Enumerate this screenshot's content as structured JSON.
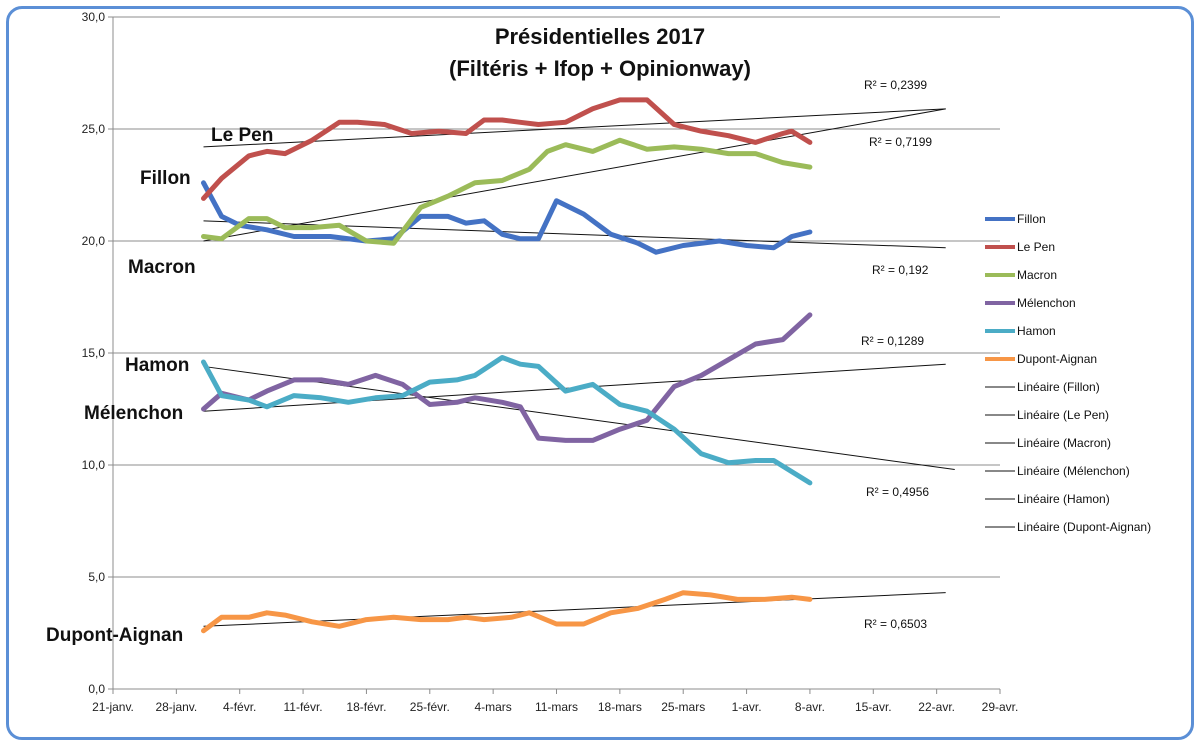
{
  "chart_data": {
    "type": "line",
    "title": "Présidentielles 2017",
    "subtitle": "(Filtéris + Ifop + Opinionway)",
    "ylim": [
      0,
      30
    ],
    "yticks": [
      "0,0",
      "5,0",
      "10,0",
      "15,0",
      "20,0",
      "25,0",
      "30,0"
    ],
    "xlim": [
      "2017-01-21",
      "2017-04-29"
    ],
    "xticks": [
      "21-janv.",
      "28-janv.",
      "4-févr.",
      "11-févr.",
      "18-févr.",
      "25-févr.",
      "4-mars",
      "11-mars",
      "18-mars",
      "25-mars",
      "1-avr.",
      "8-avr.",
      "15-avr.",
      "22-avr.",
      "29-avr."
    ],
    "grid": "horizontal",
    "legend_position": "right",
    "series": [
      {
        "name": "Fillon",
        "color": "#4472c4",
        "label": "Fillon",
        "x": [
          "2017-01-31",
          "2017-02-02",
          "2017-02-04",
          "2017-02-07",
          "2017-02-10",
          "2017-02-14",
          "2017-02-18",
          "2017-02-21",
          "2017-02-24",
          "2017-02-27",
          "2017-03-01",
          "2017-03-03",
          "2017-03-05",
          "2017-03-07",
          "2017-03-09",
          "2017-03-11",
          "2017-03-14",
          "2017-03-17",
          "2017-03-20",
          "2017-03-22",
          "2017-03-25",
          "2017-03-29",
          "2017-04-01",
          "2017-04-04",
          "2017-04-06",
          "2017-04-08"
        ],
        "values": [
          22.6,
          21.1,
          20.7,
          20.5,
          20.2,
          20.2,
          20.0,
          20.1,
          21.1,
          21.1,
          20.8,
          20.9,
          20.3,
          20.1,
          20.1,
          21.8,
          21.2,
          20.3,
          19.9,
          19.5,
          19.8,
          20.0,
          19.8,
          19.7,
          20.2,
          20.4
        ]
      },
      {
        "name": "Le Pen",
        "color": "#c0504d",
        "label": "Le Pen",
        "x": [
          "2017-01-31",
          "2017-02-02",
          "2017-02-05",
          "2017-02-07",
          "2017-02-09",
          "2017-02-12",
          "2017-02-15",
          "2017-02-17",
          "2017-02-20",
          "2017-02-23",
          "2017-02-26",
          "2017-03-01",
          "2017-03-03",
          "2017-03-05",
          "2017-03-07",
          "2017-03-09",
          "2017-03-12",
          "2017-03-15",
          "2017-03-18",
          "2017-03-21",
          "2017-03-24",
          "2017-03-27",
          "2017-03-30",
          "2017-04-02",
          "2017-04-05",
          "2017-04-06",
          "2017-04-08"
        ],
        "values": [
          21.9,
          22.8,
          23.8,
          24.0,
          23.9,
          24.5,
          25.3,
          25.3,
          25.2,
          24.8,
          24.9,
          24.8,
          25.4,
          25.4,
          25.3,
          25.2,
          25.3,
          25.9,
          26.3,
          26.3,
          25.2,
          24.9,
          24.7,
          24.4,
          24.8,
          24.9,
          24.4
        ]
      },
      {
        "name": "Macron",
        "color": "#9bbb59",
        "label": "Macron",
        "x": [
          "2017-01-31",
          "2017-02-02",
          "2017-02-05",
          "2017-02-07",
          "2017-02-09",
          "2017-02-12",
          "2017-02-15",
          "2017-02-18",
          "2017-02-21",
          "2017-02-24",
          "2017-02-27",
          "2017-03-02",
          "2017-03-05",
          "2017-03-08",
          "2017-03-10",
          "2017-03-12",
          "2017-03-15",
          "2017-03-18",
          "2017-03-21",
          "2017-03-24",
          "2017-03-27",
          "2017-03-30",
          "2017-04-02",
          "2017-04-05",
          "2017-04-08"
        ],
        "values": [
          20.2,
          20.1,
          21.0,
          21.0,
          20.6,
          20.6,
          20.7,
          20.0,
          19.9,
          21.5,
          22.0,
          22.6,
          22.7,
          23.2,
          24.0,
          24.3,
          24.0,
          24.5,
          24.1,
          24.2,
          24.1,
          23.9,
          23.9,
          23.5,
          23.3
        ]
      },
      {
        "name": "Mélenchon",
        "color": "#8064a2",
        "label": "Mélenchon",
        "x": [
          "2017-01-31",
          "2017-02-02",
          "2017-02-05",
          "2017-02-07",
          "2017-02-10",
          "2017-02-13",
          "2017-02-16",
          "2017-02-19",
          "2017-02-22",
          "2017-02-25",
          "2017-02-28",
          "2017-03-02",
          "2017-03-05",
          "2017-03-07",
          "2017-03-09",
          "2017-03-12",
          "2017-03-15",
          "2017-03-18",
          "2017-03-21",
          "2017-03-24",
          "2017-03-27",
          "2017-03-30",
          "2017-04-02",
          "2017-04-05",
          "2017-04-08"
        ],
        "values": [
          12.5,
          13.2,
          12.9,
          13.3,
          13.8,
          13.8,
          13.6,
          14.0,
          13.6,
          12.7,
          12.8,
          13.0,
          12.8,
          12.6,
          11.2,
          11.1,
          11.1,
          11.6,
          12.0,
          13.5,
          14.0,
          14.7,
          15.4,
          15.6,
          16.7
        ]
      },
      {
        "name": "Hamon",
        "color": "#4bacc6",
        "label": "Hamon",
        "x": [
          "2017-01-31",
          "2017-02-02",
          "2017-02-05",
          "2017-02-07",
          "2017-02-10",
          "2017-02-13",
          "2017-02-16",
          "2017-02-19",
          "2017-02-22",
          "2017-02-25",
          "2017-02-28",
          "2017-03-02",
          "2017-03-05",
          "2017-03-07",
          "2017-03-09",
          "2017-03-12",
          "2017-03-15",
          "2017-03-18",
          "2017-03-21",
          "2017-03-24",
          "2017-03-27",
          "2017-03-30",
          "2017-04-02",
          "2017-04-04",
          "2017-04-08"
        ],
        "values": [
          14.6,
          13.1,
          12.9,
          12.6,
          13.1,
          13.0,
          12.8,
          13.0,
          13.1,
          13.7,
          13.8,
          14.0,
          14.8,
          14.5,
          14.4,
          13.3,
          13.6,
          12.7,
          12.4,
          11.6,
          10.5,
          10.1,
          10.2,
          10.2,
          9.2
        ]
      },
      {
        "name": "Dupont-Aignan",
        "color": "#f79646",
        "label": "Dupont-Aignan",
        "x": [
          "2017-01-31",
          "2017-02-02",
          "2017-02-05",
          "2017-02-07",
          "2017-02-09",
          "2017-02-12",
          "2017-02-15",
          "2017-02-18",
          "2017-02-21",
          "2017-02-24",
          "2017-02-27",
          "2017-03-01",
          "2017-03-03",
          "2017-03-06",
          "2017-03-08",
          "2017-03-11",
          "2017-03-14",
          "2017-03-17",
          "2017-03-20",
          "2017-03-23",
          "2017-03-25",
          "2017-03-28",
          "2017-03-31",
          "2017-04-03",
          "2017-04-06",
          "2017-04-08"
        ],
        "values": [
          2.6,
          3.2,
          3.2,
          3.4,
          3.3,
          3.0,
          2.8,
          3.1,
          3.2,
          3.1,
          3.1,
          3.2,
          3.1,
          3.2,
          3.4,
          2.9,
          2.9,
          3.4,
          3.6,
          4.0,
          4.3,
          4.2,
          4.0,
          4.0,
          4.1,
          4.0
        ]
      }
    ],
    "trendlines": [
      {
        "name": "Linéaire (Fillon)",
        "r2": "R² = 0,192",
        "x": [
          "2017-01-31",
          "2017-04-23"
        ],
        "values": [
          20.9,
          19.7
        ]
      },
      {
        "name": "Linéaire (Le Pen)",
        "r2": "R² = 0,2399",
        "x": [
          "2017-01-31",
          "2017-04-23"
        ],
        "values": [
          24.2,
          25.9
        ]
      },
      {
        "name": "Linéaire (Macron)",
        "r2": "R² = 0,7199",
        "x": [
          "2017-01-31",
          "2017-04-23"
        ],
        "values": [
          20.0,
          25.9
        ]
      },
      {
        "name": "Linéaire (Mélenchon)",
        "r2": "R² = 0,1289",
        "x": [
          "2017-01-31",
          "2017-04-23"
        ],
        "values": [
          12.4,
          14.5
        ]
      },
      {
        "name": "Linéaire (Hamon)",
        "r2": "R² = 0,4956",
        "x": [
          "2017-01-31",
          "2017-04-24"
        ],
        "values": [
          14.4,
          9.8
        ]
      },
      {
        "name": "Linéaire (Dupont-Aignan)",
        "r2": "R² = 0,6503",
        "x": [
          "2017-01-31",
          "2017-04-23"
        ],
        "values": [
          2.8,
          4.3
        ]
      }
    ]
  }
}
